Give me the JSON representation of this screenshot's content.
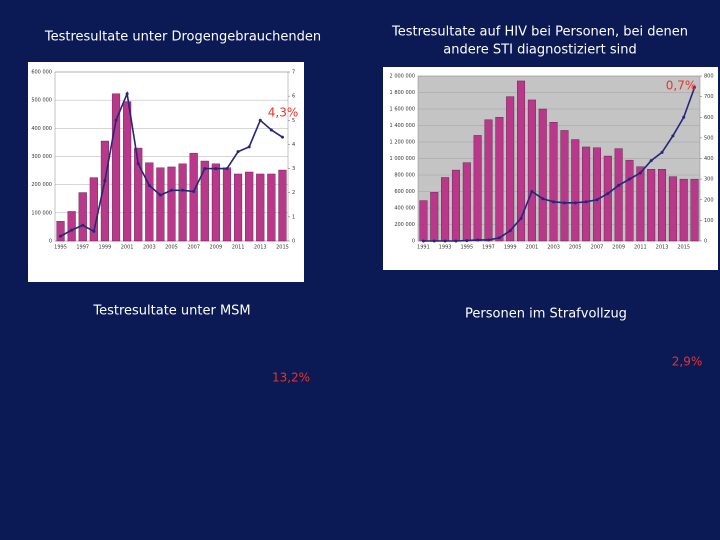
{
  "panels": [
    {
      "title": [
        "Testresultate unter Drogengebrauchenden"
      ],
      "highlight": "4,3%"
    },
    {
      "title": [
        "Testresultate auf HIV bei Personen, bei denen",
        "andere STI diagnostiziert sind"
      ],
      "highlight": "0,7%"
    },
    {
      "title": [
        "Testresultate unter MSM"
      ],
      "highlight": "13,2%"
    },
    {
      "title": [
        "Personen im Strafvollzug"
      ],
      "highlight": "2,9%"
    }
  ],
  "chart_data": [
    {
      "type": "bar-line",
      "categories": [
        "1995",
        null,
        "1997",
        null,
        "1999",
        null,
        "2001",
        null,
        "2003",
        null,
        "2005",
        null,
        "2007",
        null,
        "2009",
        null,
        "2011",
        null,
        "2013",
        null,
        "2015"
      ],
      "series": [
        {
          "color": "#b8388a",
          "values": [
            70000,
            105000,
            172000,
            225000,
            355000,
            523000,
            495000,
            330000,
            278000,
            260000,
            263000,
            274000,
            312000,
            284000,
            274000,
            260000,
            238000,
            245000,
            238000,
            238000,
            252000
          ]
        },
        {
          "color": "#26267a",
          "axis": "y2",
          "values": [
            0.2,
            0.45,
            0.65,
            0.4,
            2.5,
            5.0,
            6.1,
            3.2,
            2.3,
            1.9,
            2.1,
            2.1,
            2.05,
            3.0,
            3.0,
            3.0,
            3.7,
            3.9,
            5.0,
            4.6,
            4.3
          ]
        }
      ],
      "ylim": [
        0,
        600000
      ],
      "yticks": [
        0,
        {
          "value": 100000,
          "label": "100 000"
        },
        {
          "value": 200000,
          "label": "200 000"
        },
        {
          "value": 300000,
          "label": "300 000"
        },
        {
          "value": 400000,
          "label": "400 000"
        },
        {
          "value": 500000,
          "label": "500 000"
        },
        {
          "value": 600000,
          "label": "600 000"
        }
      ],
      "y2lim": [
        0,
        7
      ],
      "y2ticks": [
        0,
        1,
        2,
        3,
        4,
        5,
        6,
        7
      ],
      "plot_background": "#ffffff"
    },
    {
      "type": "bar-line",
      "categories": [
        "1991",
        null,
        "1993",
        null,
        "1995",
        null,
        "1997",
        null,
        "1999",
        null,
        "2001",
        null,
        "2003",
        null,
        "2005",
        null,
        "2007",
        null,
        "2009",
        null,
        "2011",
        null,
        "2013",
        null,
        "2015",
        null
      ],
      "series": [
        {
          "color": "#b8388a",
          "values": [
            490000,
            590000,
            770000,
            860000,
            950000,
            1280000,
            1470000,
            1500000,
            1750000,
            1940000,
            1710000,
            1600000,
            1440000,
            1340000,
            1230000,
            1140000,
            1130000,
            1030000,
            1120000,
            980000,
            900000,
            870000,
            870000,
            780000,
            750000,
            750000
          ]
        },
        {
          "color": "#26267a",
          "axis": "y2",
          "values": [
            0,
            0,
            0,
            0,
            2,
            5,
            5,
            15,
            50,
            110,
            240,
            205,
            190,
            185,
            185,
            190,
            200,
            230,
            270,
            300,
            330,
            390,
            430,
            510,
            600,
            745
          ]
        }
      ],
      "ylim": [
        0,
        2000000
      ],
      "yticks": [
        0,
        {
          "value": 200000,
          "label": "200 000"
        },
        {
          "value": 400000,
          "label": "400 000"
        },
        {
          "value": 600000,
          "label": "600 000"
        },
        {
          "value": 800000,
          "label": "800 000"
        },
        {
          "value": 1000000,
          "label": "1 000 000"
        },
        {
          "value": 1200000,
          "label": "1 200 000"
        },
        {
          "value": 1400000,
          "label": "1 400 000"
        },
        {
          "value": 1600000,
          "label": "1 600 000"
        },
        {
          "value": 1800000,
          "label": "1 800 000"
        },
        {
          "value": 2000000,
          "label": "2 000 000"
        }
      ],
      "y2lim": [
        0,
        800
      ],
      "y2ticks": [
        0,
        100,
        200,
        300,
        400,
        500,
        600,
        700,
        800
      ],
      "plot_background": "#c4c4c4"
    }
  ]
}
